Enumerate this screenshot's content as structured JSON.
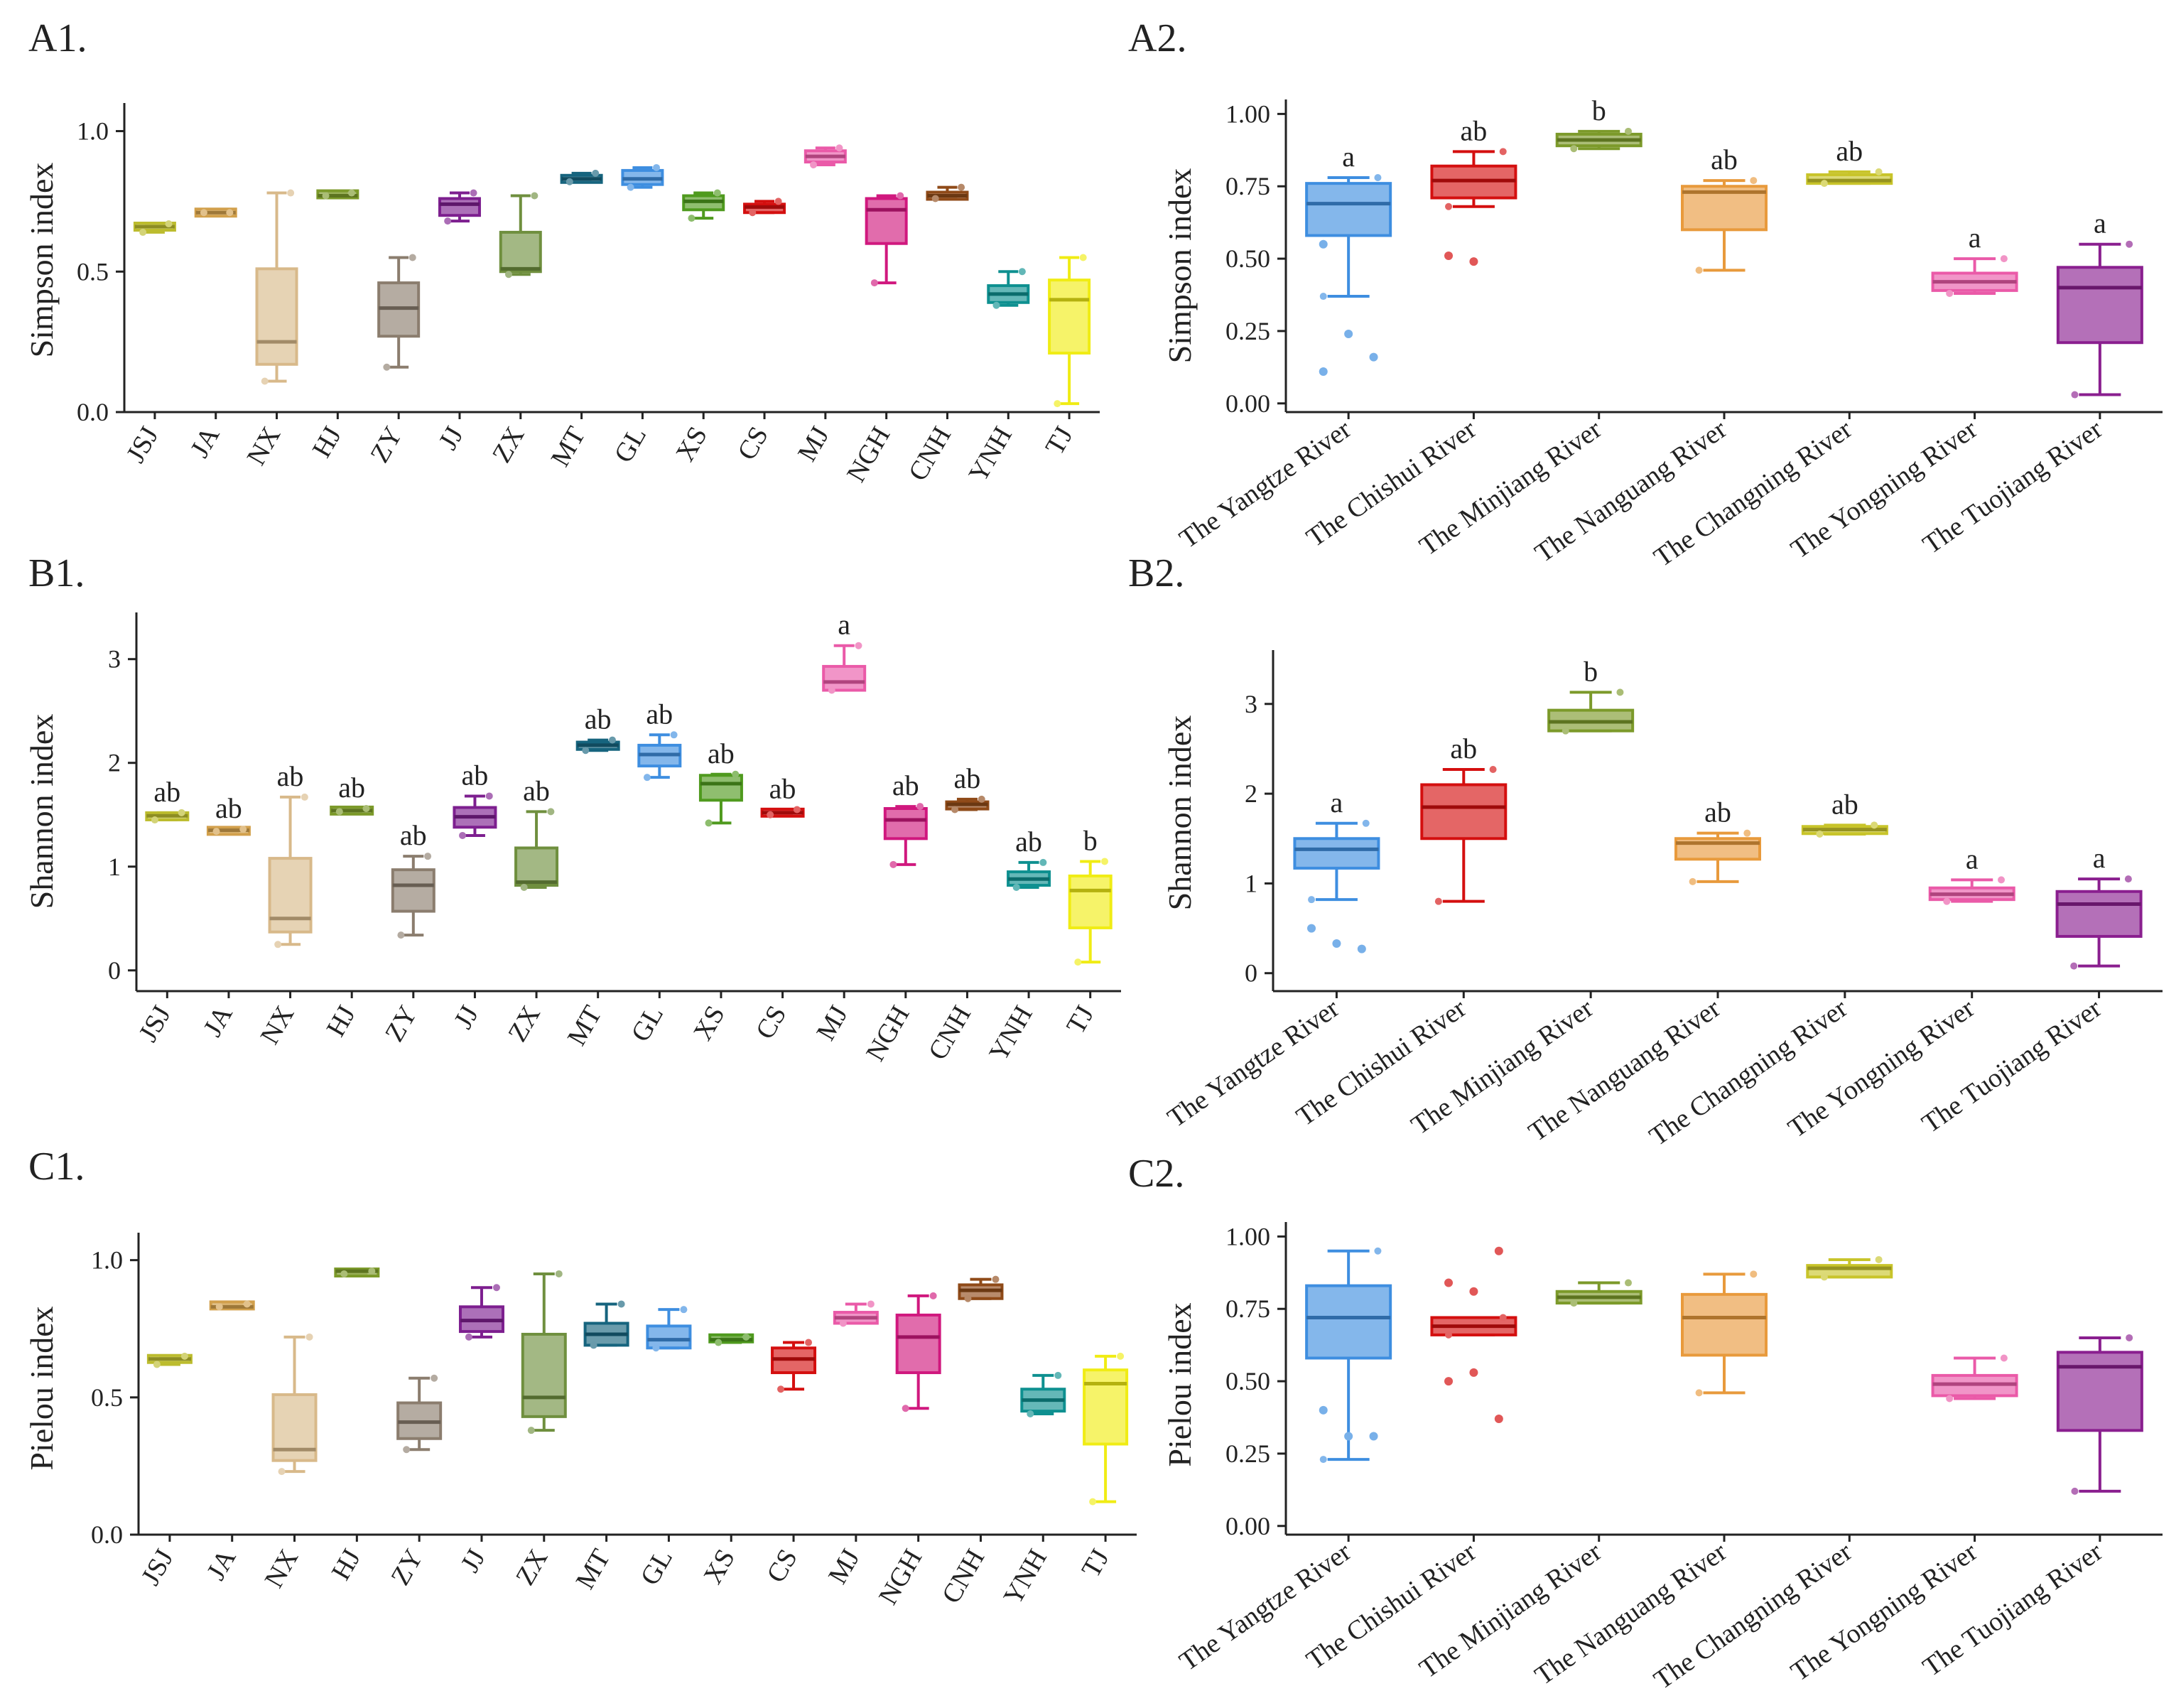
{
  "chart_data": [
    {
      "id": "A1",
      "panel_label": "A1.",
      "type": "box",
      "ylabel": "Simpson index",
      "ylim": [
        0,
        1.1
      ],
      "yticks": [
        0,
        0.5,
        1
      ],
      "ytick_labels": [
        "0.0",
        "0.5",
        "1.0"
      ],
      "categories": [
        "JSJ",
        "JA",
        "NX",
        "HJ",
        "ZY",
        "JJ",
        "ZX",
        "MT",
        "GL",
        "XS",
        "CS",
        "MJ",
        "NGH",
        "CNH",
        "YNH",
        "TJ"
      ],
      "colors": [
        "#bcbc2e",
        "#d2a04c",
        "#d8b98a",
        "#7c9a2a",
        "#8b7d6e",
        "#7d1f8f",
        "#6f8f3e",
        "#16647e",
        "#3e8ee0",
        "#4f9a1e",
        "#d40f0f",
        "#ea5aa8",
        "#d0187e",
        "#8f4a18",
        "#0e9090",
        "#f0ec14"
      ],
      "boxes": [
        {
          "min": 0.64,
          "q1": 0.65,
          "median": 0.66,
          "q3": 0.67,
          "max": 0.67
        },
        {
          "min": 0.71,
          "q1": 0.71,
          "median": 0.71,
          "q3": 0.71,
          "max": 0.71
        },
        {
          "min": 0.11,
          "q1": 0.17,
          "median": 0.25,
          "q3": 0.51,
          "max": 0.78
        },
        {
          "min": 0.77,
          "q1": 0.77,
          "median": 0.77,
          "q3": 0.78,
          "max": 0.78
        },
        {
          "min": 0.16,
          "q1": 0.27,
          "median": 0.37,
          "q3": 0.46,
          "max": 0.55
        },
        {
          "min": 0.68,
          "q1": 0.7,
          "median": 0.74,
          "q3": 0.76,
          "max": 0.78
        },
        {
          "min": 0.49,
          "q1": 0.5,
          "median": 0.51,
          "q3": 0.64,
          "max": 0.77
        },
        {
          "min": 0.82,
          "q1": 0.82,
          "median": 0.83,
          "q3": 0.84,
          "max": 0.85
        },
        {
          "min": 0.8,
          "q1": 0.81,
          "median": 0.83,
          "q3": 0.86,
          "max": 0.87
        },
        {
          "min": 0.69,
          "q1": 0.72,
          "median": 0.75,
          "q3": 0.77,
          "max": 0.78
        },
        {
          "min": 0.71,
          "q1": 0.71,
          "median": 0.73,
          "q3": 0.74,
          "max": 0.75
        },
        {
          "min": 0.88,
          "q1": 0.89,
          "median": 0.91,
          "q3": 0.93,
          "max": 0.94
        },
        {
          "min": 0.46,
          "q1": 0.6,
          "median": 0.72,
          "q3": 0.76,
          "max": 0.77
        },
        {
          "min": 0.76,
          "q1": 0.76,
          "median": 0.77,
          "q3": 0.78,
          "max": 0.8
        },
        {
          "min": 0.38,
          "q1": 0.39,
          "median": 0.42,
          "q3": 0.45,
          "max": 0.5
        },
        {
          "min": 0.03,
          "q1": 0.21,
          "median": 0.4,
          "q3": 0.47,
          "max": 0.55
        }
      ],
      "letters": []
    },
    {
      "id": "A2",
      "panel_label": "A2.",
      "type": "box",
      "ylabel": "Simpson index",
      "ylim": [
        -0.03,
        1.05
      ],
      "yticks": [
        0,
        0.25,
        0.5,
        0.75,
        1
      ],
      "ytick_labels": [
        "0.00",
        "0.25",
        "0.50",
        "0.75",
        "1.00"
      ],
      "categories": [
        "The Yangtze River",
        "The Chishui River",
        "The Minjiang River",
        "The Nanguang River",
        "The Changning River",
        "The Yongning River",
        "The Tuojiang River"
      ],
      "colors": [
        "#3e8ee0",
        "#d40f0f",
        "#7c9a2a",
        "#e89a3c",
        "#c8c42a",
        "#ea5aa8",
        "#8a1f8f"
      ],
      "boxes": [
        {
          "min": 0.37,
          "q1": 0.58,
          "median": 0.69,
          "q3": 0.76,
          "max": 0.78
        },
        {
          "min": 0.68,
          "q1": 0.71,
          "median": 0.77,
          "q3": 0.82,
          "max": 0.87
        },
        {
          "min": 0.88,
          "q1": 0.89,
          "median": 0.91,
          "q3": 0.93,
          "max": 0.94
        },
        {
          "min": 0.46,
          "q1": 0.6,
          "median": 0.73,
          "q3": 0.75,
          "max": 0.77
        },
        {
          "min": 0.76,
          "q1": 0.76,
          "median": 0.77,
          "q3": 0.79,
          "max": 0.8
        },
        {
          "min": 0.38,
          "q1": 0.39,
          "median": 0.42,
          "q3": 0.45,
          "max": 0.5
        },
        {
          "min": 0.03,
          "q1": 0.21,
          "median": 0.4,
          "q3": 0.47,
          "max": 0.55
        }
      ],
      "outliers": [
        [
          0.55,
          0.24,
          0.16,
          0.11
        ],
        [
          0.51,
          0.49
        ],
        [],
        [],
        [],
        [],
        []
      ],
      "letters": [
        "a",
        "ab",
        "b",
        "ab",
        "ab",
        "a",
        "a"
      ]
    },
    {
      "id": "B1",
      "panel_label": "B1.",
      "type": "box",
      "ylabel": "Shannon index",
      "ylim": [
        -0.2,
        3.45
      ],
      "yticks": [
        0,
        1,
        2,
        3
      ],
      "ytick_labels": [
        "0",
        "1",
        "2",
        "3"
      ],
      "categories": [
        "JSJ",
        "JA",
        "NX",
        "HJ",
        "ZY",
        "JJ",
        "ZX",
        "MT",
        "GL",
        "XS",
        "CS",
        "MJ",
        "NGH",
        "CNH",
        "YNH",
        "TJ"
      ],
      "colors": [
        "#bcbc2e",
        "#d2a04c",
        "#d8b98a",
        "#7c9a2a",
        "#8b7d6e",
        "#7d1f8f",
        "#6f8f3e",
        "#16647e",
        "#3e8ee0",
        "#4f9a1e",
        "#d40f0f",
        "#ea5aa8",
        "#d0187e",
        "#8f4a18",
        "#0e9090",
        "#f0ec14"
      ],
      "boxes": [
        {
          "min": 1.45,
          "q1": 1.46,
          "median": 1.49,
          "q3": 1.51,
          "max": 1.52
        },
        {
          "min": 1.34,
          "q1": 1.34,
          "median": 1.35,
          "q3": 1.35,
          "max": 1.36
        },
        {
          "min": 0.25,
          "q1": 0.37,
          "median": 0.5,
          "q3": 1.08,
          "max": 1.67
        },
        {
          "min": 1.53,
          "q1": 1.53,
          "median": 1.54,
          "q3": 1.55,
          "max": 1.56
        },
        {
          "min": 0.34,
          "q1": 0.57,
          "median": 0.82,
          "q3": 0.97,
          "max": 1.1
        },
        {
          "min": 1.3,
          "q1": 1.38,
          "median": 1.48,
          "q3": 1.57,
          "max": 1.68
        },
        {
          "min": 0.8,
          "q1": 0.82,
          "median": 0.85,
          "q3": 1.18,
          "max": 1.53
        },
        {
          "min": 2.12,
          "q1": 2.13,
          "median": 2.17,
          "q3": 2.2,
          "max": 2.22
        },
        {
          "min": 1.86,
          "q1": 1.97,
          "median": 2.08,
          "q3": 2.17,
          "max": 2.27
        },
        {
          "min": 1.42,
          "q1": 1.64,
          "median": 1.8,
          "q3": 1.88,
          "max": 1.89
        },
        {
          "min": 1.5,
          "q1": 1.5,
          "median": 1.52,
          "q3": 1.54,
          "max": 1.55
        },
        {
          "min": 2.7,
          "q1": 2.7,
          "median": 2.78,
          "q3": 2.93,
          "max": 3.13
        },
        {
          "min": 1.02,
          "q1": 1.27,
          "median": 1.45,
          "q3": 1.56,
          "max": 1.58
        },
        {
          "min": 1.55,
          "q1": 1.56,
          "median": 1.6,
          "q3": 1.62,
          "max": 1.65
        },
        {
          "min": 0.8,
          "q1": 0.82,
          "median": 0.88,
          "q3": 0.95,
          "max": 1.04
        },
        {
          "min": 0.08,
          "q1": 0.41,
          "median": 0.77,
          "q3": 0.91,
          "max": 1.05
        }
      ],
      "letters": [
        "ab",
        "ab",
        "ab",
        "ab",
        "ab",
        "ab",
        "ab",
        "ab",
        "ab",
        "ab",
        "ab",
        "a",
        "ab",
        "ab",
        "ab",
        "b"
      ]
    },
    {
      "id": "B2",
      "panel_label": "B2.",
      "type": "box",
      "ylabel": "Shannon index",
      "ylim": [
        -0.2,
        3.6
      ],
      "yticks": [
        0,
        1,
        2,
        3
      ],
      "ytick_labels": [
        "0",
        "1",
        "2",
        "3"
      ],
      "categories": [
        "The Yangtze River",
        "The Chishui River",
        "The Minjiang River",
        "The Nanguang River",
        "The Changning River",
        "The Yongning River",
        "The Tuojiang River"
      ],
      "colors": [
        "#3e8ee0",
        "#d40f0f",
        "#7c9a2a",
        "#e89a3c",
        "#c8c42a",
        "#ea5aa8",
        "#8a1f8f"
      ],
      "boxes": [
        {
          "min": 0.82,
          "q1": 1.17,
          "median": 1.38,
          "q3": 1.5,
          "max": 1.67
        },
        {
          "min": 0.8,
          "q1": 1.5,
          "median": 1.85,
          "q3": 2.1,
          "max": 2.27
        },
        {
          "min": 2.7,
          "q1": 2.7,
          "median": 2.8,
          "q3": 2.93,
          "max": 3.13
        },
        {
          "min": 1.02,
          "q1": 1.27,
          "median": 1.45,
          "q3": 1.5,
          "max": 1.56
        },
        {
          "min": 1.55,
          "q1": 1.56,
          "median": 1.6,
          "q3": 1.63,
          "max": 1.65
        },
        {
          "min": 0.8,
          "q1": 0.82,
          "median": 0.88,
          "q3": 0.95,
          "max": 1.04
        },
        {
          "min": 0.08,
          "q1": 0.41,
          "median": 0.77,
          "q3": 0.91,
          "max": 1.05
        }
      ],
      "outliers": [
        [
          0.5,
          0.33,
          0.27
        ],
        [],
        [],
        [],
        [],
        [],
        []
      ],
      "letters": [
        "a",
        "ab",
        "b",
        "ab",
        "ab",
        "a",
        "a"
      ]
    },
    {
      "id": "C1",
      "panel_label": "C1.",
      "type": "box",
      "ylabel": "Pielou index",
      "ylim": [
        0,
        1.1
      ],
      "yticks": [
        0,
        0.5,
        1
      ],
      "ytick_labels": [
        "0.0",
        "0.5",
        "1.0"
      ],
      "categories": [
        "JSJ",
        "JA",
        "NX",
        "HJ",
        "ZY",
        "JJ",
        "ZX",
        "MT",
        "GL",
        "XS",
        "CS",
        "MJ",
        "NGH",
        "CNH",
        "YNH",
        "TJ"
      ],
      "colors": [
        "#bcbc2e",
        "#d2a04c",
        "#d8b98a",
        "#7c9a2a",
        "#8b7d6e",
        "#7d1f8f",
        "#6f8f3e",
        "#16647e",
        "#3e8ee0",
        "#4f9a1e",
        "#d40f0f",
        "#ea5aa8",
        "#d0187e",
        "#8f4a18",
        "#0e9090",
        "#f0ec14"
      ],
      "boxes": [
        {
          "min": 0.62,
          "q1": 0.63,
          "median": 0.64,
          "q3": 0.65,
          "max": 0.65
        },
        {
          "min": 0.83,
          "q1": 0.83,
          "median": 0.83,
          "q3": 0.84,
          "max": 0.84
        },
        {
          "min": 0.23,
          "q1": 0.27,
          "median": 0.31,
          "q3": 0.51,
          "max": 0.72
        },
        {
          "min": 0.95,
          "q1": 0.95,
          "median": 0.96,
          "q3": 0.96,
          "max": 0.96
        },
        {
          "min": 0.31,
          "q1": 0.35,
          "median": 0.41,
          "q3": 0.48,
          "max": 0.57
        },
        {
          "min": 0.72,
          "q1": 0.74,
          "median": 0.78,
          "q3": 0.83,
          "max": 0.9
        },
        {
          "min": 0.38,
          "q1": 0.43,
          "median": 0.5,
          "q3": 0.73,
          "max": 0.95
        },
        {
          "min": 0.69,
          "q1": 0.69,
          "median": 0.73,
          "q3": 0.77,
          "max": 0.84
        },
        {
          "min": 0.68,
          "q1": 0.68,
          "median": 0.71,
          "q3": 0.76,
          "max": 0.82
        },
        {
          "min": 0.7,
          "q1": 0.71,
          "median": 0.71,
          "q3": 0.72,
          "max": 0.72
        },
        {
          "min": 0.53,
          "q1": 0.59,
          "median": 0.64,
          "q3": 0.68,
          "max": 0.7
        },
        {
          "min": 0.77,
          "q1": 0.77,
          "median": 0.79,
          "q3": 0.81,
          "max": 0.84
        },
        {
          "min": 0.46,
          "q1": 0.59,
          "median": 0.72,
          "q3": 0.8,
          "max": 0.87
        },
        {
          "min": 0.86,
          "q1": 0.86,
          "median": 0.89,
          "q3": 0.91,
          "max": 0.93
        },
        {
          "min": 0.44,
          "q1": 0.45,
          "median": 0.49,
          "q3": 0.53,
          "max": 0.58
        },
        {
          "min": 0.12,
          "q1": 0.33,
          "median": 0.55,
          "q3": 0.6,
          "max": 0.65
        }
      ],
      "letters": []
    },
    {
      "id": "C2",
      "panel_label": "C2.",
      "type": "box",
      "ylabel": "Pielou index",
      "ylim": [
        -0.03,
        1.05
      ],
      "yticks": [
        0,
        0.25,
        0.5,
        0.75,
        1
      ],
      "ytick_labels": [
        "0.00",
        "0.25",
        "0.50",
        "0.75",
        "1.00"
      ],
      "categories": [
        "The Yangtze River",
        "The Chishui River",
        "The Minjiang River",
        "The Nanguang River",
        "The Changning River",
        "The Yongning River",
        "The Tuojiang River"
      ],
      "colors": [
        "#3e8ee0",
        "#d40f0f",
        "#7c9a2a",
        "#e89a3c",
        "#c8c42a",
        "#ea5aa8",
        "#8a1f8f"
      ],
      "boxes": [
        {
          "min": 0.23,
          "q1": 0.58,
          "median": 0.72,
          "q3": 0.83,
          "max": 0.95
        },
        {
          "min": 0.66,
          "q1": 0.66,
          "median": 0.69,
          "q3": 0.72,
          "max": 0.72
        },
        {
          "min": 0.77,
          "q1": 0.77,
          "median": 0.79,
          "q3": 0.81,
          "max": 0.84
        },
        {
          "min": 0.46,
          "q1": 0.59,
          "median": 0.72,
          "q3": 0.8,
          "max": 0.87
        },
        {
          "min": 0.86,
          "q1": 0.86,
          "median": 0.89,
          "q3": 0.9,
          "max": 0.92
        },
        {
          "min": 0.44,
          "q1": 0.45,
          "median": 0.49,
          "q3": 0.52,
          "max": 0.58
        },
        {
          "min": 0.12,
          "q1": 0.33,
          "median": 0.55,
          "q3": 0.6,
          "max": 0.65
        }
      ],
      "outliers": [
        [
          0.4,
          0.31,
          0.31
        ],
        [
          0.84,
          0.81,
          0.95,
          0.5,
          0.53,
          0.37
        ],
        [],
        [],
        [],
        [],
        []
      ],
      "letters": []
    }
  ]
}
